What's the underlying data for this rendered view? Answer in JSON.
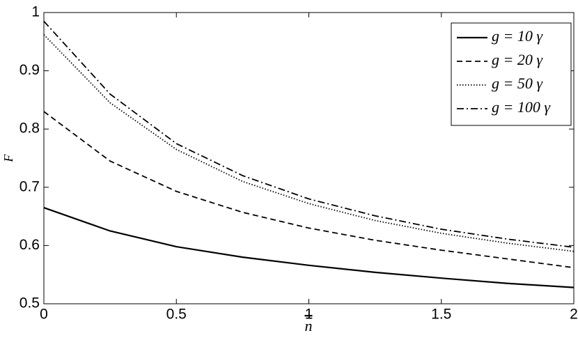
{
  "chart_data": {
    "type": "line",
    "xlabel": "n",
    "ylabel": "F",
    "x": [
      0,
      0.25,
      0.5,
      0.75,
      1,
      1.25,
      1.5,
      1.75,
      2
    ],
    "series": [
      {
        "name": "g = 10 γ",
        "color": "#000000",
        "dash": "solid",
        "values": [
          0.665,
          0.625,
          0.598,
          0.58,
          0.566,
          0.554,
          0.544,
          0.535,
          0.528
        ]
      },
      {
        "name": "g = 20 γ",
        "color": "#000000",
        "dash": "dashed",
        "values": [
          0.83,
          0.745,
          0.693,
          0.657,
          0.63,
          0.609,
          0.592,
          0.577,
          0.562
        ]
      },
      {
        "name": "g = 50 γ",
        "color": "#000000",
        "dash": "dotted",
        "values": [
          0.962,
          0.845,
          0.765,
          0.71,
          0.672,
          0.643,
          0.621,
          0.604,
          0.59
        ]
      },
      {
        "name": "g = 100 γ",
        "color": "#000000",
        "dash": "dashdot",
        "values": [
          0.985,
          0.86,
          0.775,
          0.72,
          0.68,
          0.651,
          0.628,
          0.611,
          0.597
        ]
      }
    ],
    "xlim": [
      0,
      2
    ],
    "xticks": [
      0,
      0.5,
      1,
      1.5,
      2
    ],
    "ylim": [
      0.5,
      1
    ],
    "yticks": [
      0.5,
      0.6,
      0.7,
      0.8,
      0.9,
      1
    ],
    "legend": "upper right"
  }
}
